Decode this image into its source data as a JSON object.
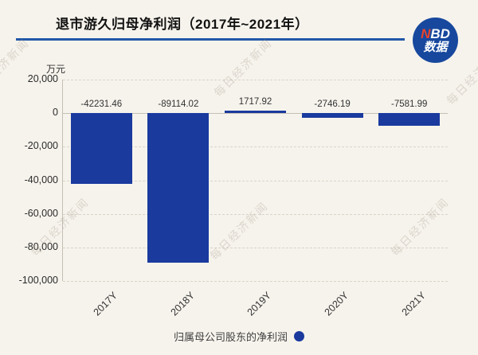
{
  "header": {
    "title": "退市游久归母净利润（2017年~2021年）",
    "logo": {
      "n": "N",
      "bd": "BD",
      "line2": "数据"
    }
  },
  "chart_data": {
    "type": "bar",
    "title": "退市游久归母净利润（2017年~2021年）",
    "unit_label": "万元",
    "categories": [
      "2017Y",
      "2018Y",
      "2019Y",
      "2020Y",
      "2021Y"
    ],
    "values": [
      -42231.46,
      -89114.02,
      1717.92,
      -2746.19,
      -7581.99
    ],
    "data_labels": [
      "-42231.46",
      "-89114.02",
      "1717.92",
      "-2746.19",
      "-7581.99"
    ],
    "series_name": "归属母公司股东的净利润",
    "ylim": [
      -100000,
      20000
    ],
    "ytick_interval": 20000,
    "ytick_labels": [
      "20,000",
      "0",
      "-20,000",
      "-40,000",
      "-60,000",
      "-80,000",
      "-100,000"
    ],
    "grid": true,
    "legend_position": "bottom",
    "bar_color": "#1a3a9e"
  },
  "legend": {
    "label": "归属母公司股东的净利润",
    "marker_color": "#1a3a9e"
  },
  "watermark": {
    "text": "每日经济新闻"
  },
  "colors": {
    "background": "#f6f3ec",
    "bar_blue": "#1a3a9e",
    "accent_line_blue": "#2157a7",
    "logo_circle_blue": "#17489e",
    "logo_n_red": "#e8432a",
    "gridline": "#d9d4c9",
    "axis_line": "#c5c0b5"
  }
}
